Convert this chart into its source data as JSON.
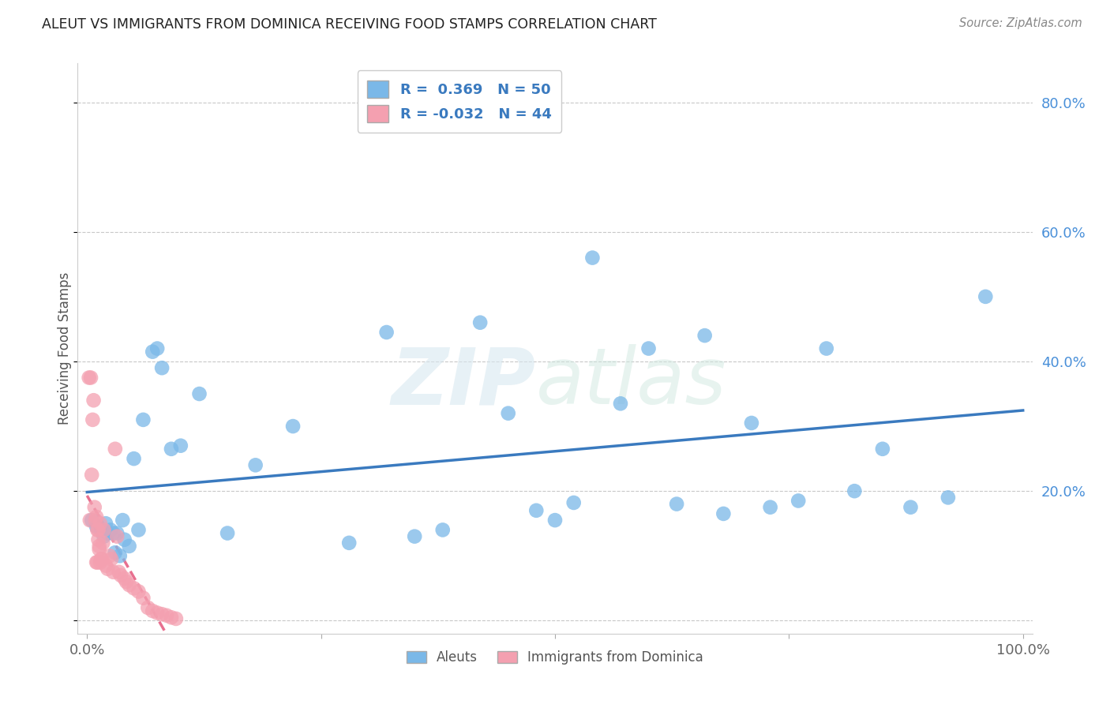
{
  "title": "ALEUT VS IMMIGRANTS FROM DOMINICA RECEIVING FOOD STAMPS CORRELATION CHART",
  "source": "Source: ZipAtlas.com",
  "ylabel": "Receiving Food Stamps",
  "aleuts_color": "#7ab8e8",
  "dominica_color": "#f4a0b0",
  "aleuts_line_color": "#3a7abf",
  "dominica_line_color": "#e87090",
  "background_color": "#ffffff",
  "grid_color": "#c8c8c8",
  "watermark_zip": "ZIP",
  "watermark_atlas": "atlas",
  "aleuts_x": [
    0.005,
    0.01,
    0.015,
    0.018,
    0.02,
    0.022,
    0.025,
    0.028,
    0.03,
    0.032,
    0.035,
    0.038,
    0.04,
    0.045,
    0.05,
    0.055,
    0.06,
    0.07,
    0.075,
    0.08,
    0.09,
    0.1,
    0.12,
    0.15,
    0.18,
    0.22,
    0.28,
    0.32,
    0.35,
    0.38,
    0.42,
    0.45,
    0.48,
    0.5,
    0.52,
    0.54,
    0.57,
    0.6,
    0.63,
    0.66,
    0.68,
    0.71,
    0.73,
    0.76,
    0.79,
    0.82,
    0.85,
    0.88,
    0.92,
    0.96
  ],
  "aleuts_y": [
    0.155,
    0.145,
    0.14,
    0.13,
    0.15,
    0.135,
    0.14,
    0.135,
    0.105,
    0.135,
    0.1,
    0.155,
    0.125,
    0.115,
    0.25,
    0.14,
    0.31,
    0.415,
    0.42,
    0.39,
    0.265,
    0.27,
    0.35,
    0.135,
    0.24,
    0.3,
    0.12,
    0.445,
    0.13,
    0.14,
    0.46,
    0.32,
    0.17,
    0.155,
    0.182,
    0.56,
    0.335,
    0.42,
    0.18,
    0.44,
    0.165,
    0.305,
    0.175,
    0.185,
    0.42,
    0.2,
    0.265,
    0.175,
    0.19,
    0.5
  ],
  "dominica_x": [
    0.002,
    0.003,
    0.004,
    0.005,
    0.006,
    0.007,
    0.008,
    0.009,
    0.01,
    0.01,
    0.011,
    0.011,
    0.012,
    0.012,
    0.013,
    0.013,
    0.014,
    0.014,
    0.015,
    0.016,
    0.017,
    0.018,
    0.02,
    0.022,
    0.024,
    0.026,
    0.028,
    0.03,
    0.032,
    0.034,
    0.036,
    0.04,
    0.042,
    0.045,
    0.05,
    0.055,
    0.06,
    0.065,
    0.07,
    0.075,
    0.08,
    0.085,
    0.09,
    0.095
  ],
  "dominica_y": [
    0.375,
    0.155,
    0.375,
    0.225,
    0.31,
    0.34,
    0.175,
    0.155,
    0.16,
    0.09,
    0.09,
    0.14,
    0.125,
    0.14,
    0.115,
    0.11,
    0.15,
    0.09,
    0.095,
    0.095,
    0.12,
    0.14,
    0.085,
    0.08,
    0.1,
    0.095,
    0.075,
    0.265,
    0.13,
    0.075,
    0.07,
    0.065,
    0.06,
    0.055,
    0.05,
    0.045,
    0.035,
    0.02,
    0.015,
    0.012,
    0.01,
    0.008,
    0.005,
    0.003
  ],
  "xlim": [
    -0.01,
    1.01
  ],
  "ylim": [
    -0.02,
    0.86
  ],
  "xticks": [
    0.0,
    0.25,
    0.5,
    0.75,
    1.0
  ],
  "xtick_labels": [
    "0.0%",
    "",
    "",
    "",
    "100.0%"
  ],
  "ytick_vals": [
    0.0,
    0.2,
    0.4,
    0.6,
    0.8
  ],
  "ytick_labels_right": [
    "",
    "20.0%",
    "40.0%",
    "60.0%",
    "80.0%"
  ]
}
